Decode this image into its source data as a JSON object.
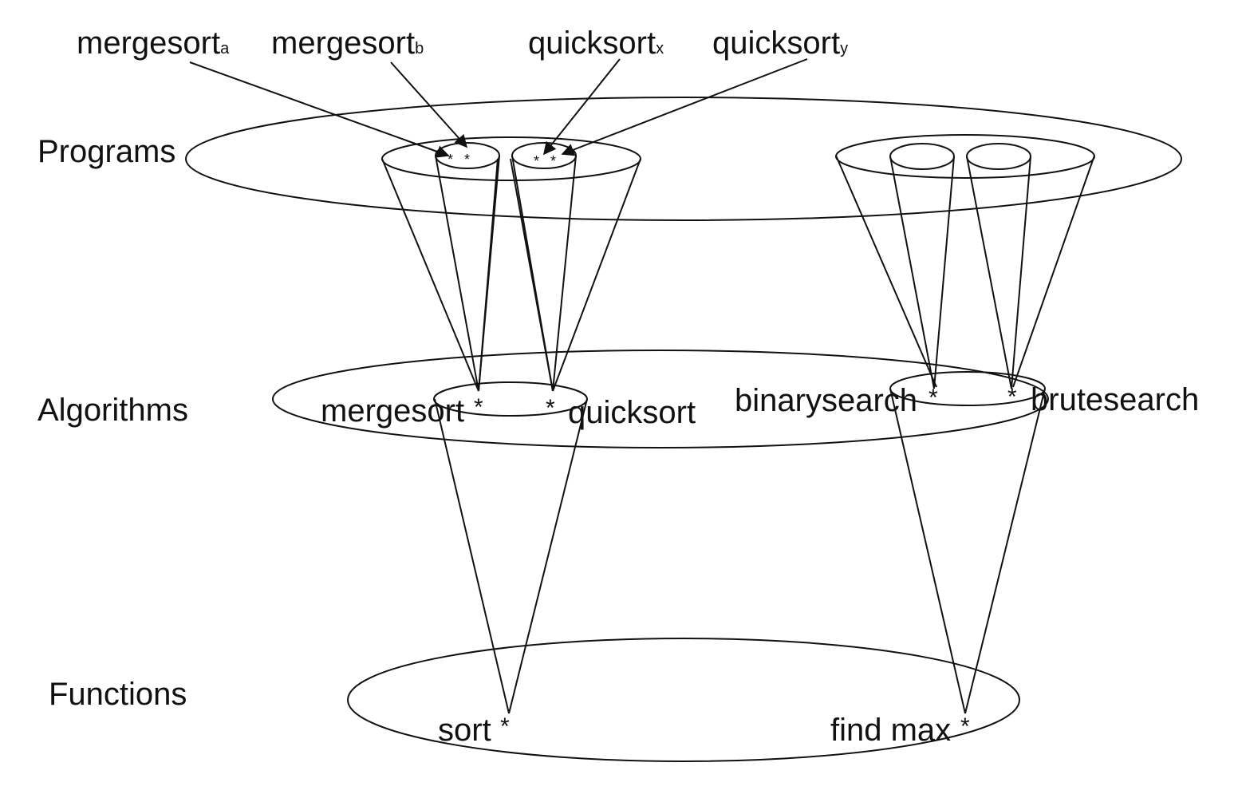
{
  "diagram": {
    "levels": {
      "programs": "Programs",
      "algorithms": "Algorithms",
      "functions": "Functions"
    },
    "programs": [
      {
        "base": "mergesort",
        "sub": "a"
      },
      {
        "base": "mergesort",
        "sub": "b"
      },
      {
        "base": "quicksort",
        "sub": "x"
      },
      {
        "base": "quicksort",
        "sub": "y"
      }
    ],
    "algorithms": {
      "mergesort": "mergesort",
      "quicksort": "quicksort",
      "binarysearch": "binarysearch",
      "brutesearch": "brutesearch"
    },
    "functions": {
      "sort": "sort",
      "find_max": "find max"
    },
    "marker": "*",
    "colors": {
      "stroke": "#111111",
      "background": "#ffffff"
    }
  }
}
